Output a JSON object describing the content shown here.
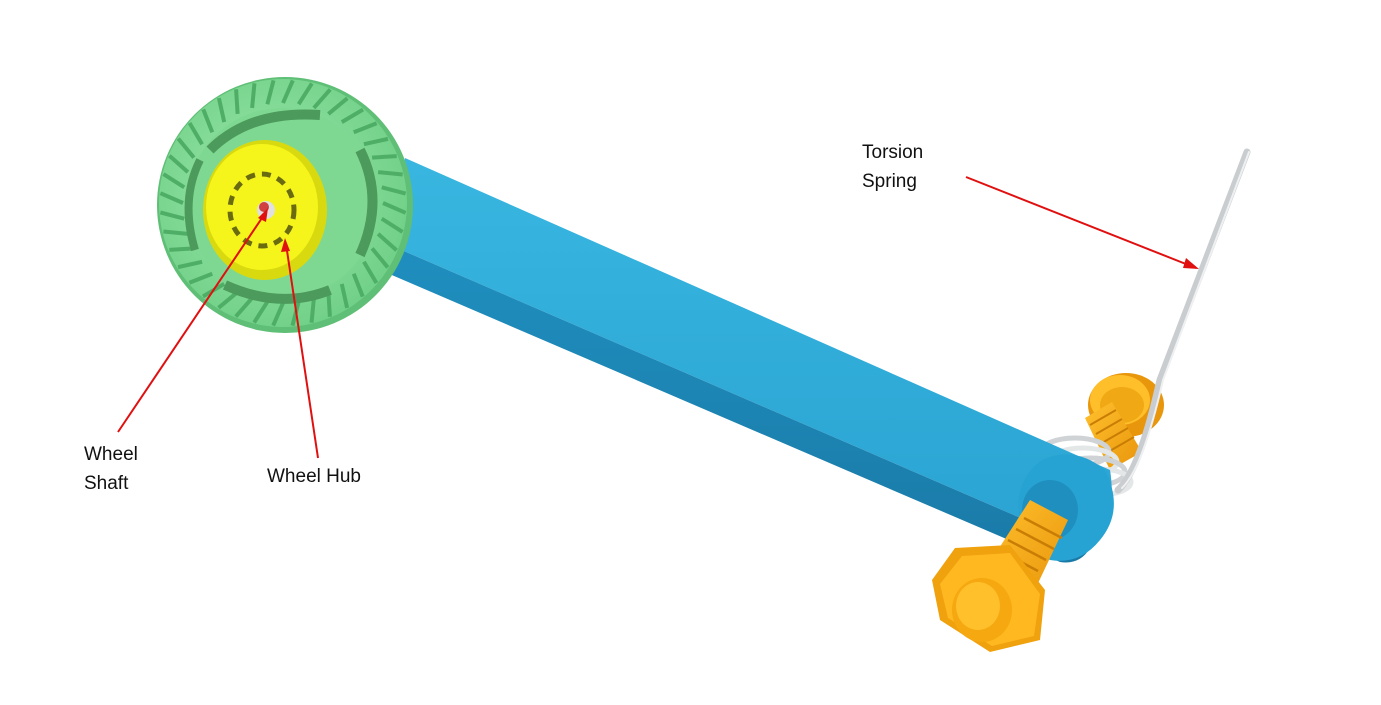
{
  "labels": {
    "torsion_spring": [
      "Torsion",
      "Spring"
    ],
    "wheel_shaft": [
      "Wheel",
      "Shaft"
    ],
    "wheel_hub": "Wheel Hub"
  },
  "colors": {
    "arm": "#2aa9d6",
    "tire": "#8fe3a0",
    "hub": "#f2f21a",
    "bolt": "#f5aa12",
    "spring": "#d6dadc",
    "leader": "#e01010"
  }
}
